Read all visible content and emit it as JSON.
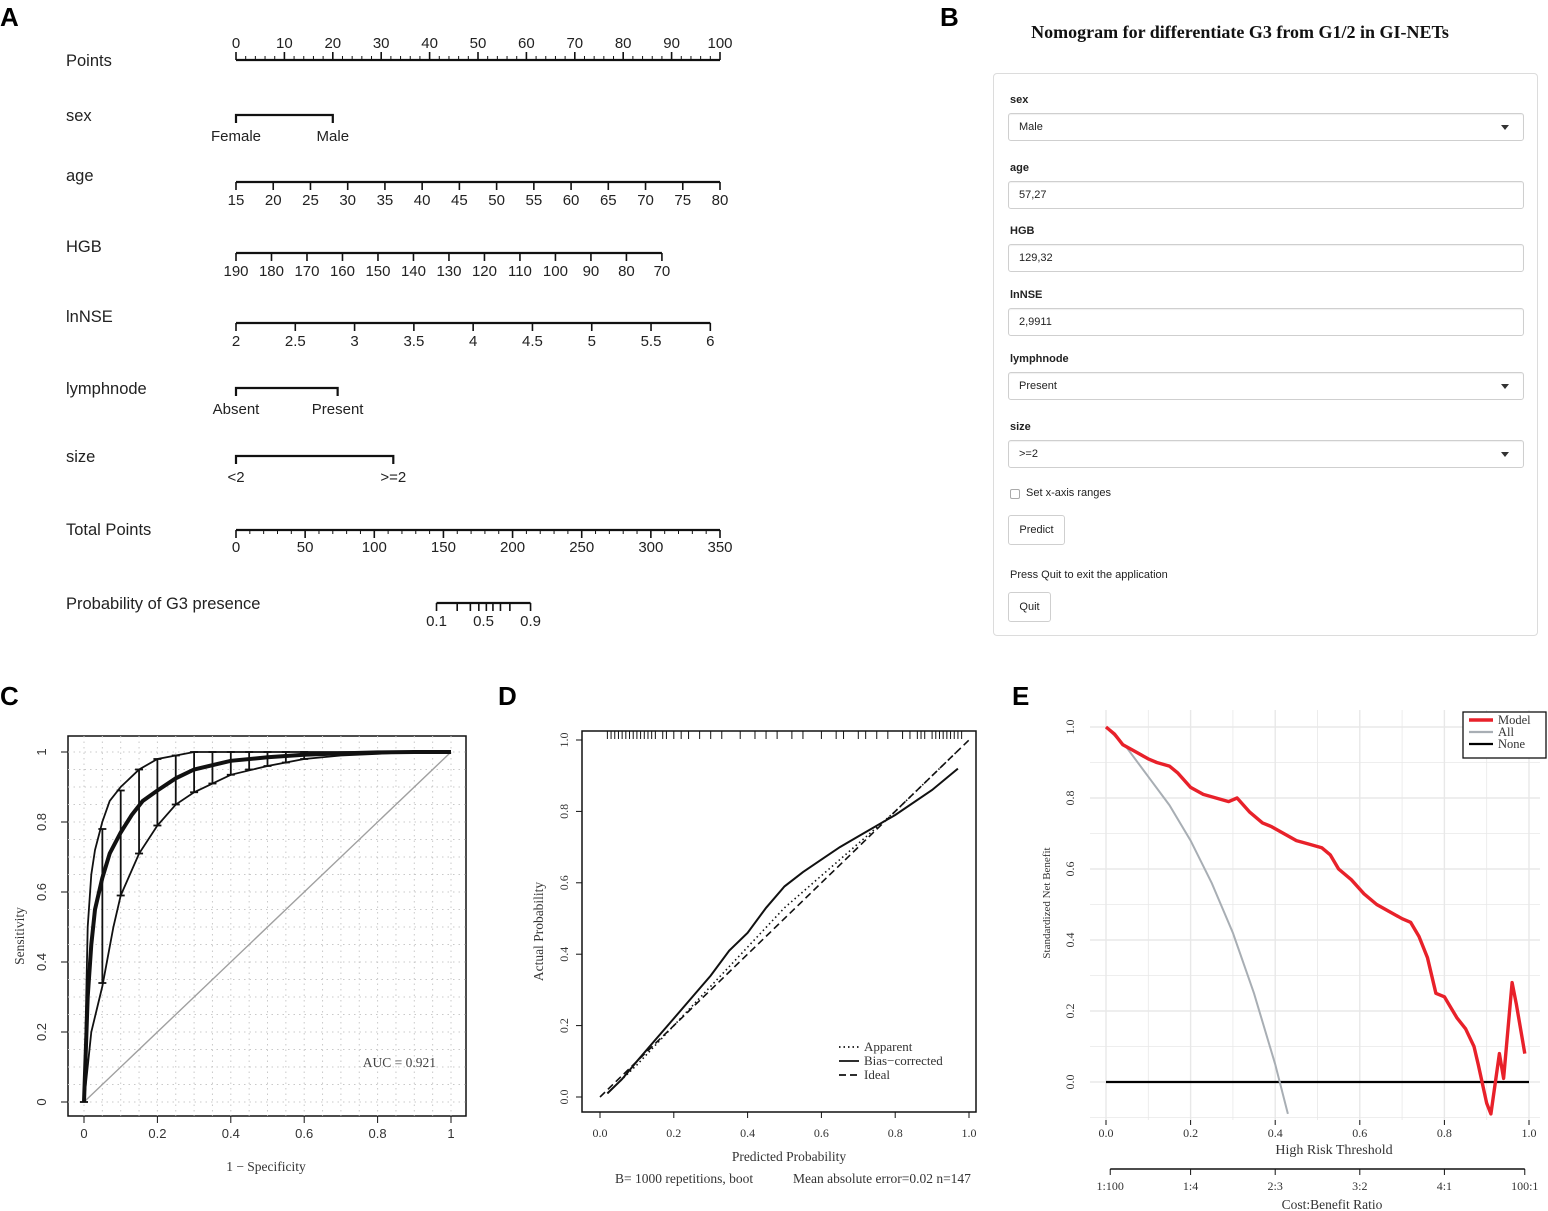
{
  "panel_labels": {
    "a": "A",
    "b": "B",
    "c": "C",
    "d": "D",
    "e": "E"
  },
  "chart_data": [
    {
      "type": "nomogram",
      "panel": "A",
      "rows": [
        {
          "name": "Points",
          "ticks": [
            "0",
            "10",
            "20",
            "30",
            "40",
            "50",
            "60",
            "70",
            "80",
            "90",
            "100"
          ]
        },
        {
          "name": "sex",
          "ticks": [
            "Female",
            "Male"
          ]
        },
        {
          "name": "age",
          "ticks": [
            "15",
            "20",
            "25",
            "30",
            "35",
            "40",
            "45",
            "50",
            "55",
            "60",
            "65",
            "70",
            "75",
            "80"
          ]
        },
        {
          "name": "HGB",
          "ticks": [
            "190",
            "180",
            "170",
            "160",
            "150",
            "140",
            "130",
            "120",
            "110",
            "100",
            "90",
            "80",
            "70"
          ]
        },
        {
          "name": "lnNSE",
          "ticks": [
            "2",
            "2.5",
            "3",
            "3.5",
            "4",
            "4.5",
            "5",
            "5.5",
            "6"
          ]
        },
        {
          "name": "lymphnode",
          "ticks": [
            "Absent",
            "Present"
          ]
        },
        {
          "name": "size",
          "ticks": [
            "<2",
            ">=2"
          ]
        },
        {
          "name": "Total Points",
          "ticks": [
            "0",
            "50",
            "100",
            "150",
            "200",
            "250",
            "300",
            "350"
          ]
        },
        {
          "name": "Probability of G3 presence",
          "ticks": [
            "0.1",
            "0.5",
            "0.9"
          ]
        }
      ],
      "points_of": {
        "sex_male": 20,
        "age_80": 100,
        "hgb_70": 88,
        "lnnse_6": 98,
        "lymphnode_present": 21,
        "size_ge2": 32.5
      },
      "probability_range_total_points": [
        145,
        213
      ]
    },
    {
      "type": "line",
      "panel": "C",
      "xlabel": "1 − Specificity",
      "ylabel": "Sensitivity",
      "xlim": [
        0,
        1
      ],
      "ylim": [
        0,
        1
      ],
      "ticks": [
        "0",
        "0.2",
        "0.4",
        "0.6",
        "0.8",
        "1"
      ],
      "annotation": "AUC = 0.921",
      "series": [
        {
          "name": "ROC",
          "x": [
            0,
            0.01,
            0.02,
            0.03,
            0.05,
            0.07,
            0.1,
            0.13,
            0.16,
            0.2,
            0.25,
            0.3,
            0.4,
            0.5,
            0.6,
            0.7,
            0.8,
            0.9,
            1
          ],
          "y": [
            0,
            0.3,
            0.45,
            0.55,
            0.64,
            0.71,
            0.77,
            0.82,
            0.86,
            0.89,
            0.925,
            0.95,
            0.975,
            0.985,
            0.992,
            0.996,
            0.999,
            1,
            1
          ]
        },
        {
          "name": "upper",
          "x": [
            0,
            0.01,
            0.02,
            0.03,
            0.05,
            0.07,
            0.1,
            0.15,
            0.2,
            0.25,
            0.3,
            0.4,
            0.5,
            0.6,
            0.8,
            1
          ],
          "y": [
            0,
            0.5,
            0.65,
            0.72,
            0.8,
            0.86,
            0.9,
            0.95,
            0.98,
            0.99,
            1,
            1,
            1,
            1,
            1,
            1
          ]
        },
        {
          "name": "lower",
          "x": [
            0,
            0.02,
            0.05,
            0.08,
            0.1,
            0.15,
            0.2,
            0.25,
            0.3,
            0.4,
            0.5,
            0.6,
            0.7,
            0.8,
            0.9,
            1
          ],
          "y": [
            0,
            0.2,
            0.33,
            0.5,
            0.59,
            0.71,
            0.79,
            0.85,
            0.885,
            0.935,
            0.96,
            0.98,
            0.99,
            0.995,
            1,
            1
          ]
        },
        {
          "name": "diagonal",
          "x": [
            0,
            1
          ],
          "y": [
            0,
            1
          ]
        }
      ],
      "error_bars": [
        {
          "x": 0.05,
          "lo": 0.34,
          "hi": 0.78
        },
        {
          "x": 0.1,
          "lo": 0.59,
          "hi": 0.89
        },
        {
          "x": 0.15,
          "lo": 0.71,
          "hi": 0.95
        },
        {
          "x": 0.2,
          "lo": 0.79,
          "hi": 0.98
        },
        {
          "x": 0.25,
          "lo": 0.85,
          "hi": 0.99
        },
        {
          "x": 0.3,
          "lo": 0.885,
          "hi": 1
        },
        {
          "x": 0.35,
          "lo": 0.91,
          "hi": 1
        },
        {
          "x": 0.4,
          "lo": 0.935,
          "hi": 1
        },
        {
          "x": 0.45,
          "lo": 0.95,
          "hi": 1
        },
        {
          "x": 0.5,
          "lo": 0.96,
          "hi": 1
        },
        {
          "x": 0.55,
          "lo": 0.97,
          "hi": 1
        },
        {
          "x": 0.6,
          "lo": 0.98,
          "hi": 1
        }
      ]
    },
    {
      "type": "line",
      "panel": "D",
      "xlabel": "Predicted Probability",
      "ylabel": "Actual Probability",
      "xlim": [
        0,
        1
      ],
      "ylim": [
        0,
        1
      ],
      "ticks": [
        "0.0",
        "0.2",
        "0.4",
        "0.6",
        "0.8",
        "1.0"
      ],
      "legend": [
        "Apparent",
        "Bias−corrected",
        "Ideal"
      ],
      "footer_left": "B= 1000 repetitions, boot",
      "footer_right": "Mean absolute error=0.02 n=147",
      "series": [
        {
          "name": "Apparent",
          "x": [
            0.02,
            0.1,
            0.2,
            0.3,
            0.4,
            0.5,
            0.6,
            0.7,
            0.8,
            0.9,
            0.97
          ],
          "y": [
            0.01,
            0.09,
            0.2,
            0.31,
            0.42,
            0.53,
            0.62,
            0.71,
            0.8,
            0.9,
            0.97
          ]
        },
        {
          "name": "Bias−corrected",
          "x": [
            0.02,
            0.06,
            0.1,
            0.15,
            0.2,
            0.25,
            0.3,
            0.35,
            0.4,
            0.45,
            0.5,
            0.55,
            0.6,
            0.65,
            0.7,
            0.8,
            0.9,
            0.97
          ],
          "y": [
            0.01,
            0.05,
            0.1,
            0.16,
            0.22,
            0.28,
            0.34,
            0.41,
            0.46,
            0.53,
            0.59,
            0.63,
            0.665,
            0.7,
            0.73,
            0.79,
            0.86,
            0.92
          ]
        },
        {
          "name": "Ideal",
          "x": [
            0,
            1
          ],
          "y": [
            0,
            1
          ]
        }
      ],
      "rug": [
        0.02,
        0.03,
        0.04,
        0.05,
        0.06,
        0.07,
        0.08,
        0.09,
        0.1,
        0.11,
        0.12,
        0.13,
        0.14,
        0.15,
        0.17,
        0.18,
        0.2,
        0.22,
        0.24,
        0.27,
        0.3,
        0.33,
        0.38,
        0.42,
        0.45,
        0.48,
        0.52,
        0.55,
        0.6,
        0.64,
        0.66,
        0.7,
        0.72,
        0.75,
        0.78,
        0.82,
        0.84,
        0.86,
        0.87,
        0.88,
        0.9,
        0.91,
        0.92,
        0.93,
        0.94,
        0.95,
        0.96,
        0.97,
        0.98
      ]
    },
    {
      "type": "line",
      "panel": "E",
      "xlabel": "High Risk Threshold",
      "ylabel": "Standardized Net Benefit",
      "xlim": [
        0,
        1
      ],
      "ylim": [
        -0.1,
        1
      ],
      "xticks": [
        "0.0",
        "0.2",
        "0.4",
        "0.6",
        "0.8",
        "1.0"
      ],
      "yticks": [
        "0.0",
        "0.2",
        "0.4",
        "0.6",
        "0.8",
        "1.0"
      ],
      "cost_benefit_label": "Cost:Benefit Ratio",
      "cost_benefit_ticks": [
        "1:100",
        "1:4",
        "2:3",
        "3:2",
        "4:1",
        "100:1"
      ],
      "legend": [
        "Model",
        "All",
        "None"
      ],
      "colors": {
        "Model": "#e8212a",
        "All": "#a8aeb4",
        "None": "#000000"
      },
      "series": [
        {
          "name": "Model",
          "x": [
            0,
            0.02,
            0.04,
            0.07,
            0.1,
            0.12,
            0.15,
            0.17,
            0.2,
            0.23,
            0.26,
            0.29,
            0.31,
            0.34,
            0.37,
            0.39,
            0.42,
            0.45,
            0.48,
            0.51,
            0.53,
            0.55,
            0.58,
            0.61,
            0.64,
            0.67,
            0.7,
            0.72,
            0.74,
            0.76,
            0.78,
            0.8,
            0.81,
            0.83,
            0.85,
            0.87,
            0.88,
            0.9,
            0.91,
            0.93,
            0.94,
            0.96,
            0.97,
            0.99
          ],
          "y": [
            1,
            0.98,
            0.95,
            0.93,
            0.91,
            0.9,
            0.89,
            0.87,
            0.83,
            0.81,
            0.8,
            0.79,
            0.8,
            0.76,
            0.73,
            0.72,
            0.7,
            0.68,
            0.67,
            0.66,
            0.64,
            0.6,
            0.57,
            0.53,
            0.5,
            0.48,
            0.46,
            0.45,
            0.41,
            0.35,
            0.25,
            0.24,
            0.22,
            0.18,
            0.15,
            0.1,
            0.05,
            -0.06,
            -0.09,
            0.08,
            0.01,
            0.28,
            0.22,
            0.08
          ]
        },
        {
          "name": "All",
          "x": [
            0,
            0.05,
            0.1,
            0.15,
            0.2,
            0.25,
            0.3,
            0.35,
            0.4,
            0.43
          ],
          "y": [
            1,
            0.94,
            0.86,
            0.78,
            0.68,
            0.56,
            0.42,
            0.25,
            0.05,
            -0.09
          ]
        },
        {
          "name": "None",
          "x": [
            0,
            1
          ],
          "y": [
            0,
            0
          ]
        }
      ]
    }
  ],
  "shiny": {
    "title": "Nomogram for differentiate G3 from G1/2 in GI-NETs",
    "fields": {
      "sex": {
        "label": "sex",
        "value": "Male"
      },
      "age": {
        "label": "age",
        "value": "57,27"
      },
      "hgb": {
        "label": "HGB",
        "value": "129,32"
      },
      "lnnse": {
        "label": "lnNSE",
        "value": "2,9911"
      },
      "lymphnode": {
        "label": "lymphnode",
        "value": "Present"
      },
      "size": {
        "label": "size",
        "value": ">=2"
      }
    },
    "checkbox_label": "Set x-axis ranges",
    "predict_label": "Predict",
    "quit_note": "Press Quit to exit the application",
    "quit_label": "Quit"
  }
}
